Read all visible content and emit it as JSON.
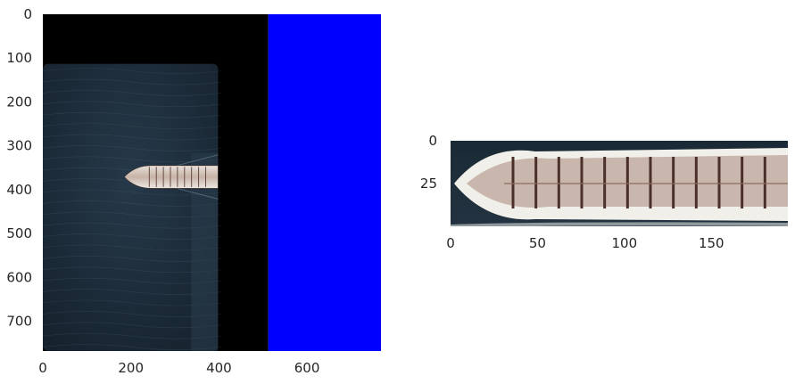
{
  "chart_data": [
    {
      "type": "image",
      "title": "",
      "xlabel": "",
      "ylabel": "",
      "xlim": [
        0,
        768
      ],
      "ylim": [
        768,
        0
      ],
      "grid": false,
      "x_ticks": [
        0,
        200,
        400,
        600
      ],
      "y_ticks": [
        0,
        100,
        200,
        300,
        400,
        500,
        600,
        700
      ],
      "regions": [
        {
          "name": "padding-black",
          "color": "#000000",
          "x": [
            0,
            512
          ],
          "y": [
            0,
            768
          ]
        },
        {
          "name": "padding-blue",
          "color": "#0000ff",
          "x": [
            512,
            768
          ],
          "y": [
            0,
            768
          ]
        },
        {
          "name": "sea-tile",
          "color": "#1c2b38",
          "x": [
            0,
            398
          ],
          "y": [
            113,
            768
          ]
        }
      ],
      "ship": {
        "x": [
          185,
          398
        ],
        "y": [
          345,
          397
        ]
      }
    },
    {
      "type": "image",
      "title": "",
      "xlabel": "",
      "ylabel": "",
      "xlim": [
        0,
        194
      ],
      "ylim": [
        50,
        0
      ],
      "grid": false,
      "x_ticks": [
        0,
        50,
        100,
        150
      ],
      "y_ticks": [
        0,
        25
      ],
      "ship": {
        "x": [
          0,
          194
        ],
        "y": [
          0,
          50
        ]
      }
    }
  ]
}
